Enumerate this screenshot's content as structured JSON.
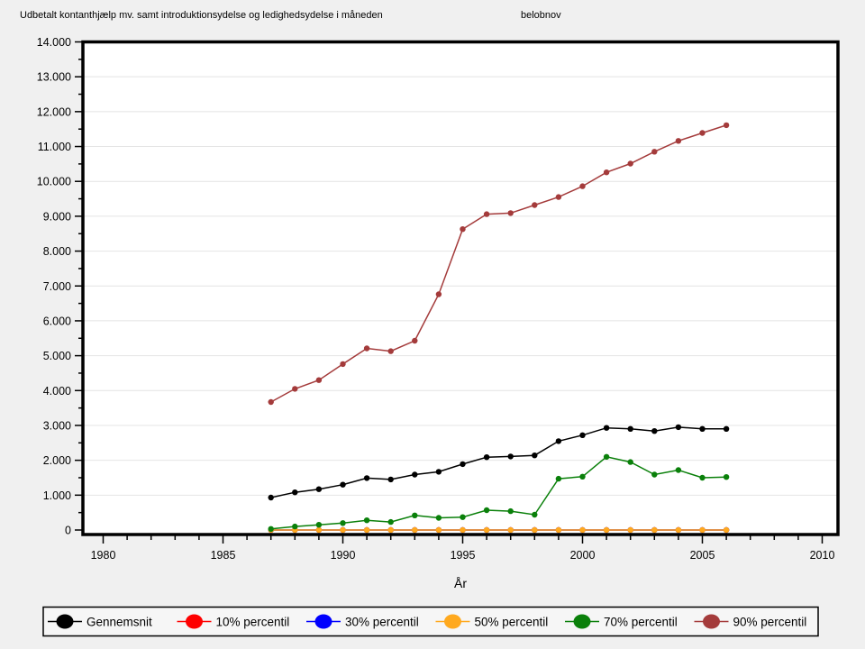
{
  "chart_data": {
    "type": "line",
    "title": "Udbetalt kontanthjælp mv. samt introduktionsydelse og ledighedsydelse i måneden",
    "right_label": "belobnov",
    "xlabel": "År",
    "ylabel": "",
    "x_tick_labels": [
      "1980",
      "1985",
      "1990",
      "1995",
      "2000",
      "2005",
      "2010"
    ],
    "x_major_ticks": [
      1980,
      1985,
      1990,
      1995,
      2000,
      2005,
      2010
    ],
    "x_minor_step": 1,
    "xlim": [
      1979.2,
      2010.6
    ],
    "ylim": [
      0,
      14000
    ],
    "y_major_step": 1000,
    "y_minor_step": 500,
    "y_tick_labels": [
      "0",
      "1.000",
      "2.000",
      "3.000",
      "4.000",
      "5.000",
      "6.000",
      "7.000",
      "8.000",
      "9.000",
      "10.000",
      "11.000",
      "12.000",
      "13.000",
      "14.000"
    ],
    "grid": "horizontal-only",
    "legend_position": "bottom",
    "background_color": "#f0f0f0",
    "plot_background_color": "#ffffff",
    "gridline_color": "#e4e4e4",
    "x": [
      1987,
      1988,
      1989,
      1990,
      1991,
      1992,
      1993,
      1994,
      1995,
      1996,
      1997,
      1998,
      1999,
      2000,
      2001,
      2002,
      2003,
      2004,
      2005,
      2006
    ],
    "series": [
      {
        "name": "Gennemsnit",
        "color": "#000000",
        "values": [
          930,
          1080,
          1170,
          1300,
          1490,
          1450,
          1590,
          1670,
          1890,
          2090,
          2110,
          2140,
          2550,
          2720,
          2930,
          2900,
          2840,
          2950,
          2900,
          2900
        ]
      },
      {
        "name": "10% percentil",
        "color": "#fe0000",
        "values": [
          0,
          0,
          0,
          0,
          0,
          0,
          0,
          0,
          0,
          0,
          0,
          0,
          0,
          0,
          0,
          0,
          0,
          0,
          0,
          0
        ]
      },
      {
        "name": "30% percentil",
        "color": "#0000fe",
        "values": [
          0,
          0,
          0,
          0,
          0,
          0,
          0,
          0,
          0,
          0,
          0,
          0,
          0,
          0,
          0,
          0,
          0,
          0,
          0,
          0
        ]
      },
      {
        "name": "50% percentil",
        "color": "#ffa91e",
        "values": [
          0,
          0,
          0,
          0,
          0,
          0,
          0,
          0,
          0,
          0,
          0,
          0,
          0,
          0,
          0,
          0,
          0,
          0,
          0,
          0
        ]
      },
      {
        "name": "70% percentil",
        "color": "#0a800a",
        "values": [
          30,
          100,
          150,
          200,
          280,
          230,
          420,
          350,
          370,
          570,
          540,
          440,
          1470,
          1530,
          2100,
          1950,
          1590,
          1720,
          1500,
          1520
        ]
      },
      {
        "name": "90% percentil",
        "color": "#a43b3b",
        "values": [
          3670,
          4050,
          4300,
          4760,
          5210,
          5130,
          5430,
          6760,
          8630,
          9060,
          9090,
          9320,
          9550,
          9860,
          10260,
          10510,
          10850,
          11160,
          11390,
          11610
        ]
      }
    ]
  }
}
